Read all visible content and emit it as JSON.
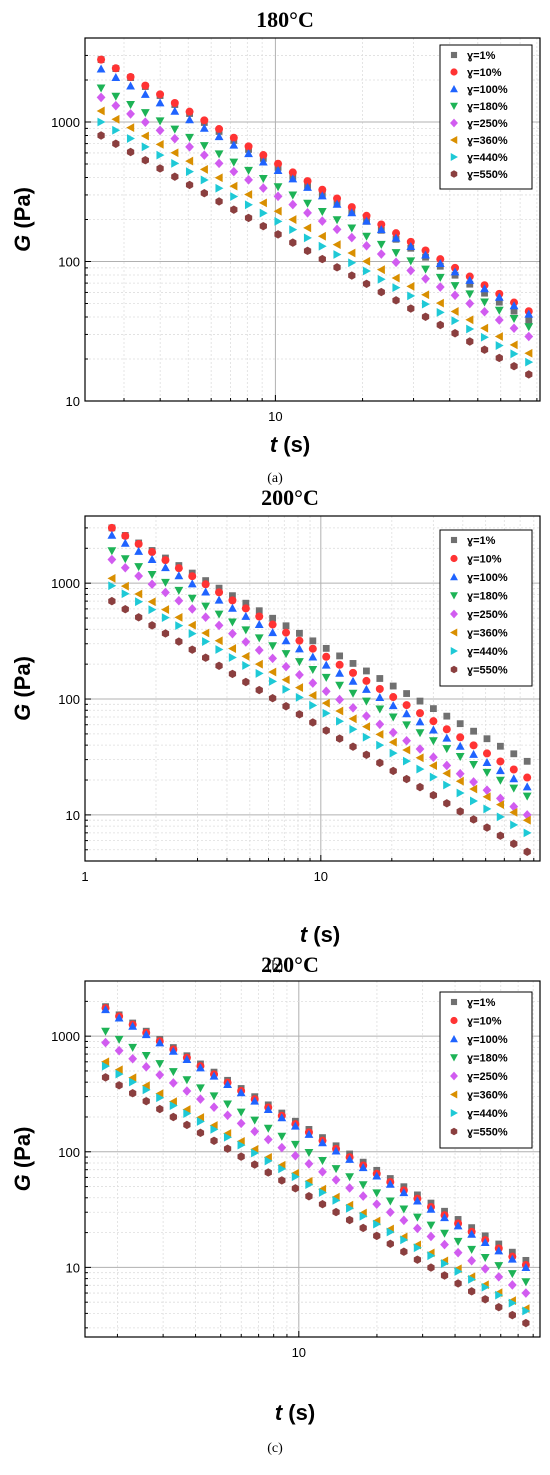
{
  "chart_data": [
    {
      "type": "scatter",
      "title": "180°C",
      "caption": "(a)",
      "xlabel": "t (s)",
      "xlabel_italic": "t",
      "xlabel_rest": " (s)",
      "ylabel": "G (Pa)",
      "ylabel_italic": "G",
      "ylabel_rest": " (Pa)",
      "x_scale": "log",
      "y_scale": "log",
      "xlim": [
        2.2,
        82
      ],
      "ylim": [
        10,
        4000
      ],
      "x_ticks": [
        {
          "value": 10,
          "label": "10"
        }
      ],
      "y_ticks": [
        {
          "value": 10,
          "label": "10"
        },
        {
          "value": 100,
          "label": "100"
        },
        {
          "value": 1000,
          "label": "1000"
        }
      ],
      "grid": true,
      "legend_position": "top-right",
      "series": [
        {
          "name": "ɣ=1%",
          "color": "#707070",
          "marker": "square",
          "t_range": [
            2.5,
            75
          ],
          "g_range": [
            2800,
            38
          ],
          "n": 30
        },
        {
          "name": "ɣ=10%",
          "color": "#ff3333",
          "marker": "circle",
          "t_range": [
            2.5,
            75
          ],
          "g_range": [
            2800,
            44
          ],
          "n": 30
        },
        {
          "name": "ɣ=100%",
          "color": "#1f63ff",
          "marker": "triangle-up",
          "t_range": [
            2.5,
            75
          ],
          "g_range": [
            2400,
            42
          ],
          "n": 30
        },
        {
          "name": "ɣ=180%",
          "color": "#1db356",
          "marker": "triangle-down",
          "t_range": [
            2.5,
            75
          ],
          "g_range": [
            1750,
            34
          ],
          "n": 30
        },
        {
          "name": "ɣ=250%",
          "color": "#d15cf0",
          "marker": "diamond",
          "t_range": [
            2.5,
            75
          ],
          "g_range": [
            1500,
            29
          ],
          "n": 30
        },
        {
          "name": "ɣ=360%",
          "color": "#d98f00",
          "marker": "triangle-left",
          "t_range": [
            2.5,
            75
          ],
          "g_range": [
            1200,
            22
          ],
          "n": 30
        },
        {
          "name": "ɣ=440%",
          "color": "#1ec9d6",
          "marker": "triangle-right",
          "t_range": [
            2.5,
            75
          ],
          "g_range": [
            1000,
            19
          ],
          "n": 30
        },
        {
          "name": "ɣ=550%",
          "color": "#8b3f3f",
          "marker": "hexagon",
          "t_range": [
            2.5,
            75
          ],
          "g_range": [
            800,
            15.5
          ],
          "n": 30
        }
      ]
    },
    {
      "type": "scatter",
      "title": "200°C",
      "caption": "(b)",
      "xlabel": "t (s)",
      "xlabel_italic": "t",
      "xlabel_rest": " (s)",
      "ylabel": "G (Pa)",
      "ylabel_italic": "G",
      "ylabel_rest": " (Pa)",
      "x_scale": "log",
      "y_scale": "log",
      "xlim": [
        1,
        85
      ],
      "ylim": [
        4,
        3800
      ],
      "x_ticks": [
        {
          "value": 1,
          "label": "1"
        },
        {
          "value": 10,
          "label": "10"
        }
      ],
      "y_ticks": [
        {
          "value": 10,
          "label": "10"
        },
        {
          "value": 100,
          "label": "100"
        },
        {
          "value": 1000,
          "label": "1000"
        }
      ],
      "grid": true,
      "legend_position": "top-right",
      "series": [
        {
          "name": "ɣ=1%",
          "color": "#707070",
          "marker": "square",
          "t_range": [
            1.3,
            75
          ],
          "g_range": [
            3000,
            29
          ],
          "n": 32
        },
        {
          "name": "ɣ=10%",
          "color": "#ff3333",
          "marker": "circle",
          "t_range": [
            1.3,
            75
          ],
          "g_range": [
            3000,
            21
          ],
          "n": 32
        },
        {
          "name": "ɣ=100%",
          "color": "#1f63ff",
          "marker": "triangle-up",
          "t_range": [
            1.3,
            75
          ],
          "g_range": [
            2600,
            17.5
          ],
          "n": 32
        },
        {
          "name": "ɣ=180%",
          "color": "#1db356",
          "marker": "triangle-down",
          "t_range": [
            1.3,
            75
          ],
          "g_range": [
            1900,
            14.5
          ],
          "n": 32
        },
        {
          "name": "ɣ=250%",
          "color": "#d15cf0",
          "marker": "diamond",
          "t_range": [
            1.3,
            75
          ],
          "g_range": [
            1600,
            10
          ],
          "n": 32
        },
        {
          "name": "ɣ=360%",
          "color": "#d98f00",
          "marker": "triangle-left",
          "t_range": [
            1.3,
            75
          ],
          "g_range": [
            1100,
            9
          ],
          "n": 32
        },
        {
          "name": "ɣ=440%",
          "color": "#1ec9d6",
          "marker": "triangle-right",
          "t_range": [
            1.3,
            75
          ],
          "g_range": [
            950,
            7
          ],
          "n": 32
        },
        {
          "name": "ɣ=550%",
          "color": "#8b3f3f",
          "marker": "hexagon",
          "t_range": [
            1.3,
            75
          ],
          "g_range": [
            700,
            4.8
          ],
          "n": 32
        }
      ]
    },
    {
      "type": "scatter",
      "title": "220°C",
      "caption": "(c)",
      "xlabel": "t (s)",
      "xlabel_italic": "t",
      "xlabel_rest": " (s)",
      "ylabel": "G (Pa)",
      "ylabel_italic": "G",
      "ylabel_rest": " (Pa)",
      "x_scale": "log",
      "y_scale": "log",
      "xlim": [
        1.5,
        85
      ],
      "ylim": [
        2.5,
        3000
      ],
      "x_ticks": [
        {
          "value": 10,
          "label": "10"
        }
      ],
      "y_ticks": [
        {
          "value": 10,
          "label": "10"
        },
        {
          "value": 100,
          "label": "100"
        },
        {
          "value": 1000,
          "label": "1000"
        }
      ],
      "grid": true,
      "legend_position": "top-right",
      "series": [
        {
          "name": "ɣ=1%",
          "color": "#707070",
          "marker": "square",
          "t_range": [
            1.8,
            75
          ],
          "g_range": [
            1800,
            11.5
          ],
          "n": 32
        },
        {
          "name": "ɣ=10%",
          "color": "#ff3333",
          "marker": "circle",
          "t_range": [
            1.8,
            75
          ],
          "g_range": [
            1750,
            10.5
          ],
          "n": 32
        },
        {
          "name": "ɣ=100%",
          "color": "#1f63ff",
          "marker": "triangle-up",
          "t_range": [
            1.8,
            75
          ],
          "g_range": [
            1700,
            10
          ],
          "n": 32
        },
        {
          "name": "ɣ=180%",
          "color": "#1db356",
          "marker": "triangle-down",
          "t_range": [
            1.8,
            75
          ],
          "g_range": [
            1100,
            7.5
          ],
          "n": 32
        },
        {
          "name": "ɣ=250%",
          "color": "#d15cf0",
          "marker": "diamond",
          "t_range": [
            1.8,
            75
          ],
          "g_range": [
            880,
            6
          ],
          "n": 32
        },
        {
          "name": "ɣ=360%",
          "color": "#d98f00",
          "marker": "triangle-left",
          "t_range": [
            1.8,
            75
          ],
          "g_range": [
            600,
            4.4
          ],
          "n": 32
        },
        {
          "name": "ɣ=440%",
          "color": "#1ec9d6",
          "marker": "triangle-right",
          "t_range": [
            1.8,
            75
          ],
          "g_range": [
            550,
            4.2
          ],
          "n": 32
        },
        {
          "name": "ɣ=550%",
          "color": "#8b3f3f",
          "marker": "hexagon",
          "t_range": [
            1.8,
            75
          ],
          "g_range": [
            440,
            3.3
          ],
          "n": 32
        }
      ]
    }
  ]
}
